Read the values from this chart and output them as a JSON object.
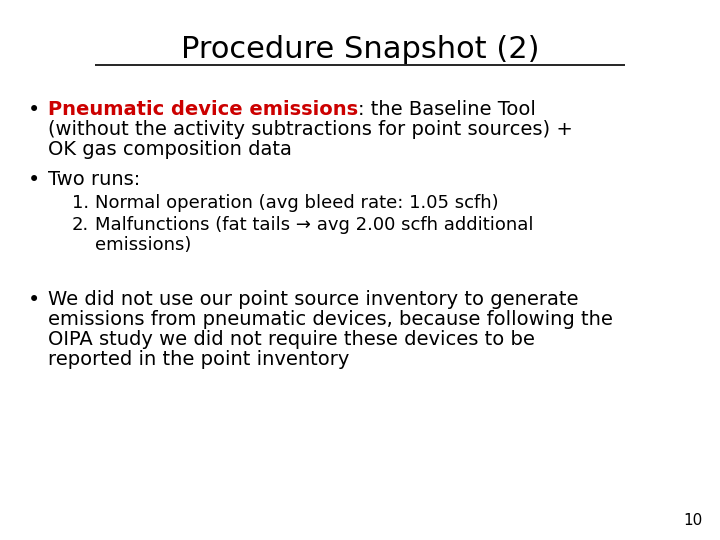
{
  "title": "Procedure Snapshot (2)",
  "title_fontsize": 22,
  "title_color": "#000000",
  "background_color": "#ffffff",
  "text_color": "#000000",
  "red_color": "#cc0000",
  "page_number": "10",
  "bullet1_red": "Pneumatic device emissions",
  "bullet1_black": ": the Baseline Tool",
  "bullet1_line2": "(without the activity subtractions for point sources) +",
  "bullet1_line3": "OK gas composition data",
  "bullet2": "Two runs:",
  "item1": "Normal operation (avg bleed rate: 1.05 scfh)",
  "item2a": "Malfunctions (fat tails → avg 2.00 scfh additional",
  "item2b": "emissions)",
  "bullet3_line1": "We did not use our point source inventory to generate",
  "bullet3_line2": "emissions from pneumatic devices, because following the",
  "bullet3_line3": "OIPA study we did not require these devices to be",
  "bullet3_line4": "reported in the point inventory",
  "font_size_title": 22,
  "font_size_body": 14,
  "font_size_sub": 13
}
